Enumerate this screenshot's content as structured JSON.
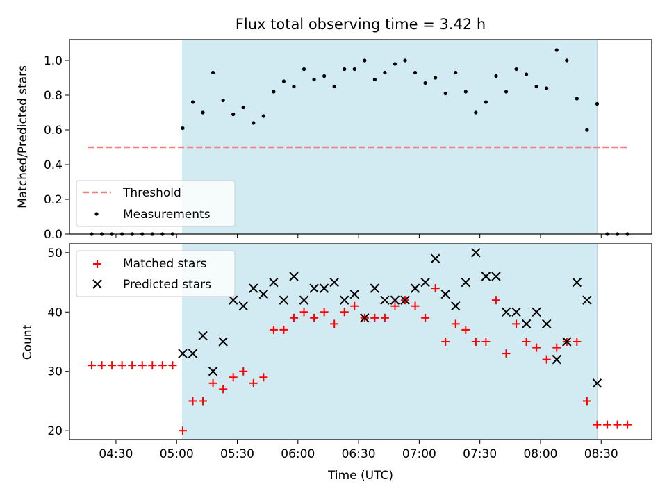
{
  "chart_data": [
    {
      "type": "scatter",
      "title": "Flux total observing time = 3.42 h",
      "ylabel": "Matched/Predicted stars",
      "xlabel": "",
      "ylim": [
        0,
        1.12
      ],
      "yticks": [
        "0.0",
        "0.2",
        "0.4",
        "0.6",
        "0.8",
        "1.0"
      ],
      "yticks_values": [
        0,
        0.2,
        0.4,
        0.6,
        0.8,
        1.0
      ],
      "legend": {
        "placement": "lower-left",
        "entries": [
          "Threshold",
          "Measurements"
        ]
      },
      "threshold": {
        "name": "Threshold",
        "value": 0.5,
        "x_start": "04:16",
        "x_end": "08:43",
        "color": "#f08080"
      },
      "observing_window": {
        "start": "05:03",
        "end": "08:28",
        "color": "#add8e6"
      },
      "series": [
        {
          "name": "Measurements",
          "color": "#000000",
          "x": [
            "04:18",
            "04:23",
            "04:28",
            "04:33",
            "04:38",
            "04:43",
            "04:48",
            "04:53",
            "04:58",
            "05:03",
            "05:08",
            "05:13",
            "05:18",
            "05:23",
            "05:28",
            "05:33",
            "05:38",
            "05:43",
            "05:48",
            "05:53",
            "05:58",
            "06:03",
            "06:08",
            "06:13",
            "06:18",
            "06:23",
            "06:28",
            "06:33",
            "06:38",
            "06:43",
            "06:48",
            "06:53",
            "06:58",
            "07:03",
            "07:08",
            "07:13",
            "07:18",
            "07:23",
            "07:28",
            "07:33",
            "07:38",
            "07:43",
            "07:48",
            "07:53",
            "07:58",
            "08:03",
            "08:08",
            "08:13",
            "08:18",
            "08:23",
            "08:28",
            "08:33",
            "08:38",
            "08:43"
          ],
          "y": [
            0,
            0,
            0,
            0,
            0,
            0,
            0,
            0,
            0,
            0.61,
            0.76,
            0.7,
            0.93,
            0.77,
            0.69,
            0.73,
            0.64,
            0.68,
            0.82,
            0.88,
            0.85,
            0.95,
            0.89,
            0.91,
            0.85,
            0.95,
            0.95,
            1.0,
            0.89,
            0.93,
            0.98,
            1.0,
            0.93,
            0.87,
            0.9,
            0.81,
            0.93,
            0.82,
            0.7,
            0.76,
            0.91,
            0.82,
            0.95,
            0.92,
            0.85,
            0.84,
            1.06,
            1.0,
            0.78,
            0.6,
            0.75,
            0,
            0,
            0
          ]
        }
      ]
    },
    {
      "type": "scatter",
      "title": "",
      "xlabel": "Time (UTC)",
      "ylabel": "Count",
      "ylim": [
        18.5,
        51.5
      ],
      "xlim": [
        "04:07",
        "08:55"
      ],
      "yticks": [
        "20",
        "30",
        "40",
        "50"
      ],
      "yticks_values": [
        20,
        30,
        40,
        50
      ],
      "xticks": [
        "04:30",
        "05:00",
        "05:30",
        "06:00",
        "06:30",
        "07:00",
        "07:30",
        "08:00",
        "08:30"
      ],
      "legend": {
        "placement": "top-left",
        "entries": [
          "Matched stars",
          "Predicted stars"
        ]
      },
      "observing_window": {
        "start": "05:03",
        "end": "08:28",
        "color": "#add8e6"
      },
      "series": [
        {
          "name": "Matched stars",
          "marker": "+",
          "color": "#ff0000",
          "x": [
            "04:18",
            "04:23",
            "04:28",
            "04:33",
            "04:38",
            "04:43",
            "04:48",
            "04:53",
            "04:58",
            "05:03",
            "05:08",
            "05:13",
            "05:18",
            "05:23",
            "05:28",
            "05:33",
            "05:38",
            "05:43",
            "05:48",
            "05:53",
            "05:58",
            "06:03",
            "06:08",
            "06:13",
            "06:18",
            "06:23",
            "06:28",
            "06:33",
            "06:38",
            "06:43",
            "06:48",
            "06:53",
            "06:58",
            "07:03",
            "07:08",
            "07:13",
            "07:18",
            "07:23",
            "07:28",
            "07:33",
            "07:38",
            "07:43",
            "07:48",
            "07:53",
            "07:58",
            "08:03",
            "08:08",
            "08:13",
            "08:18",
            "08:23",
            "08:28",
            "08:33",
            "08:38",
            "08:43"
          ],
          "y": [
            31,
            31,
            31,
            31,
            31,
            31,
            31,
            31,
            31,
            20,
            25,
            25,
            28,
            27,
            29,
            30,
            28,
            29,
            37,
            37,
            39,
            40,
            39,
            40,
            38,
            40,
            41,
            39,
            39,
            39,
            41,
            42,
            41,
            39,
            44,
            35,
            38,
            37,
            35,
            35,
            42,
            33,
            38,
            35,
            34,
            32,
            34,
            35,
            35,
            25,
            21,
            21,
            21,
            21
          ]
        },
        {
          "name": "Predicted stars",
          "marker": "x",
          "color": "#000000",
          "x": [
            "05:03",
            "05:08",
            "05:13",
            "05:18",
            "05:23",
            "05:28",
            "05:33",
            "05:38",
            "05:43",
            "05:48",
            "05:53",
            "05:58",
            "06:03",
            "06:08",
            "06:13",
            "06:18",
            "06:23",
            "06:28",
            "06:33",
            "06:38",
            "06:43",
            "06:48",
            "06:53",
            "06:58",
            "07:03",
            "07:08",
            "07:13",
            "07:18",
            "07:23",
            "07:28",
            "07:33",
            "07:38",
            "07:43",
            "07:48",
            "07:53",
            "07:58",
            "08:03",
            "08:08",
            "08:13",
            "08:18",
            "08:23",
            "08:28"
          ],
          "y": [
            33,
            33,
            36,
            30,
            35,
            42,
            41,
            44,
            43,
            45,
            42,
            46,
            42,
            44,
            44,
            45,
            42,
            43,
            39,
            44,
            42,
            42,
            42,
            44,
            45,
            49,
            43,
            41,
            45,
            50,
            46,
            46,
            40,
            40,
            38,
            40,
            38,
            32,
            35,
            45,
            42,
            28
          ]
        }
      ]
    }
  ]
}
